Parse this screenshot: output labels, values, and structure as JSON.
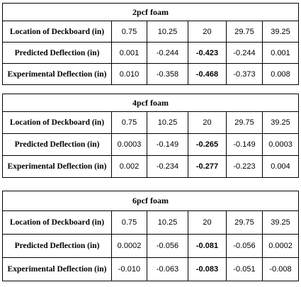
{
  "tables": [
    {
      "title": "2pcf foam",
      "location_label": "Location of Deckboard (in)",
      "locations": [
        "0.75",
        "10.25",
        "20",
        "29.75",
        "39.25"
      ],
      "predicted_label": "Predicted Deflection (in)",
      "predicted": [
        "0.001",
        "-0.244",
        "-0.423",
        "-0.244",
        "0.001"
      ],
      "experimental_label": "Experimental Deflection (in)",
      "experimental": [
        "0.010",
        "-0.358",
        "-0.468",
        "-0.373",
        "0.008"
      ]
    },
    {
      "title": "4pcf foam",
      "location_label": "Location of Deckboard (in)",
      "locations": [
        "0.75",
        "10.25",
        "20",
        "29.75",
        "39.25"
      ],
      "predicted_label": "Predicted Deflection (in)",
      "predicted": [
        "0.0003",
        "-0.149",
        "-0.265",
        "-0.149",
        "0.0003"
      ],
      "experimental_label": "Experimental Deflection (in)",
      "experimental": [
        "0.002",
        "-0.234",
        "-0.277",
        "-0.223",
        "0.004"
      ]
    },
    {
      "title": "6pcf foam",
      "location_label": "Location of Deckboard (in)",
      "locations": [
        "0.75",
        "10.25",
        "20",
        "29.75",
        "39.25"
      ],
      "predicted_label": "Predicted Deflection (in)",
      "predicted": [
        "0.0002",
        "-0.056",
        "-0.081",
        "-0.056",
        "0.0002"
      ],
      "experimental_label": "Experimental Deflection (in)",
      "experimental": [
        "-0.010",
        "-0.063",
        "-0.083",
        "-0.051",
        "-0.008"
      ]
    }
  ]
}
